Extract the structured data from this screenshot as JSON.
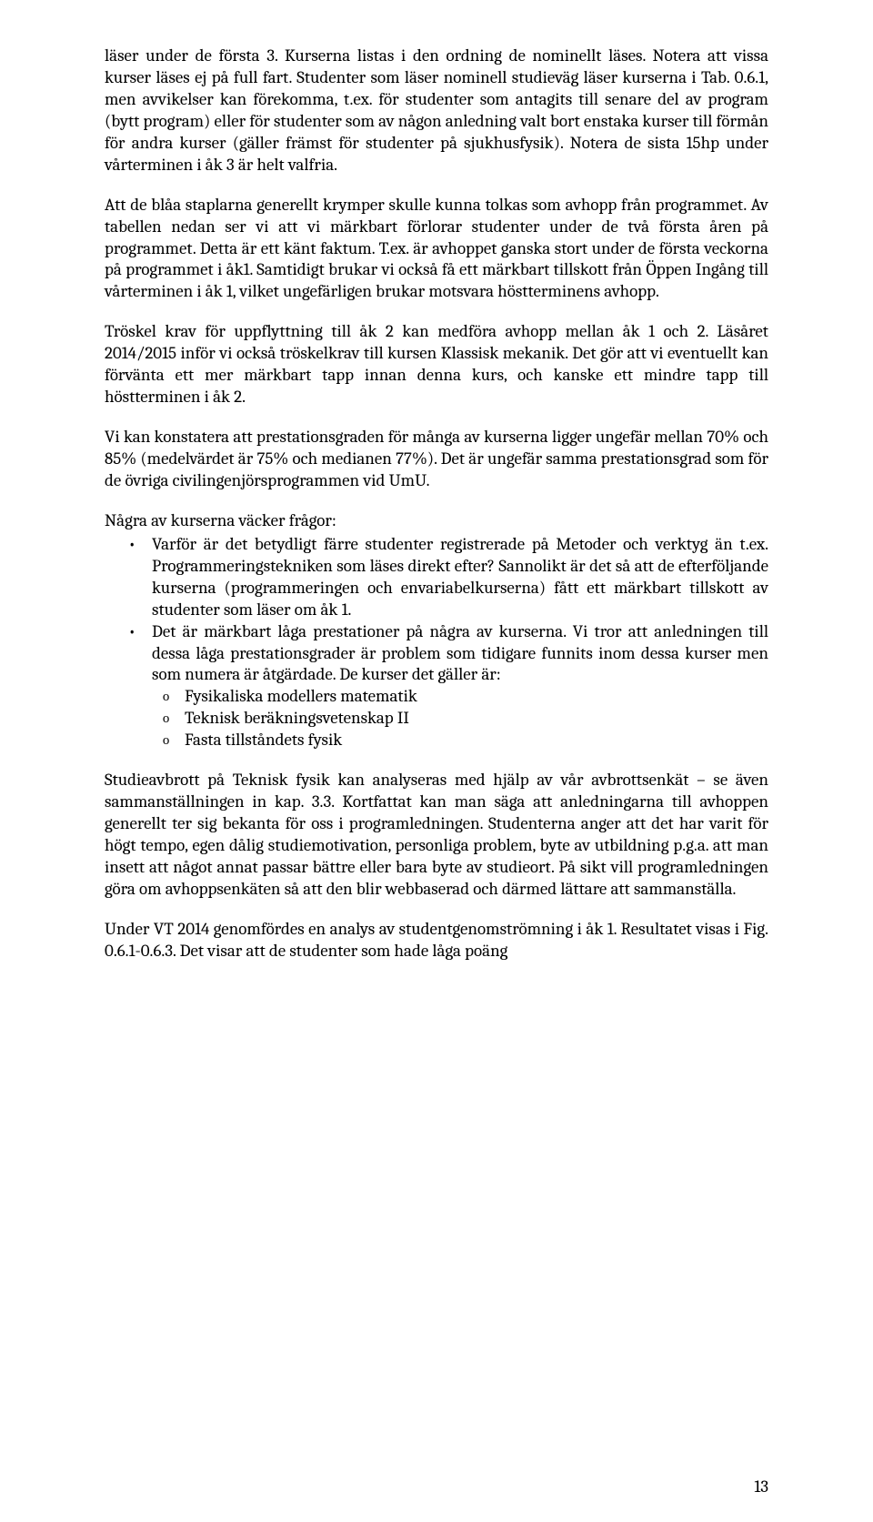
{
  "paragraphs": {
    "p1": "läser under de första 3. Kurserna listas i den ordning de nominellt läses. Notera att vissa kurser läses ej på full fart. Studenter som läser nominell studieväg läser kurserna i Tab. 0.6.1, men avvikelser kan förekomma, t.ex. för studenter som antagits till senare del av program (bytt program) eller för studenter som av någon anledning valt bort enstaka kurser till förmån för andra kurser (gäller främst för studenter på sjukhusfysik). Notera de sista 15hp under vårterminen i åk 3 är helt valfria.",
    "p2": "Att de blåa staplarna generellt krymper skulle kunna tolkas som avhopp från programmet. Av tabellen nedan ser vi att vi märkbart förlorar studenter under de två första åren på programmet. Detta är ett känt faktum. T.ex. är avhoppet ganska stort under de första veckorna på programmet i åk1. Samtidigt brukar vi också få ett märkbart tillskott från Öppen Ingång till vårterminen i åk 1, vilket ungefärligen brukar motsvara höstterminens avhopp.",
    "p3": "Tröskel krav för uppflyttning till åk 2 kan medföra avhopp mellan åk 1 och 2. Läsåret 2014/2015 inför vi också tröskelkrav till kursen Klassisk mekanik. Det gör att vi eventuellt kan förvänta ett mer märkbart tapp innan denna kurs, och kanske ett mindre tapp till höstterminen i åk 2.",
    "p4": "Vi kan konstatera att prestationsgraden för många av kurserna ligger ungefär mellan 70% och 85% (medelvärdet är 75% och medianen 77%). Det är ungefär samma prestationsgrad som för de övriga civilingenjörsprogrammen vid UmU.",
    "lead": "Några av kurserna väcker frågor:",
    "bullet1": "Varför är det betydligt färre studenter registrerade på Metoder och verktyg än t.ex. Programmeringstekniken som läses direkt efter? Sannolikt är det så att de efterföljande kurserna (programmeringen och envariabelkurserna) fått ett märkbart tillskott av studenter som läser om åk 1.",
    "bullet2": "Det är märkbart låga prestationer på några av kurserna. Vi tror att anledningen till dessa låga prestationsgrader är problem som tidigare funnits inom dessa kurser men som numera är åtgärdade. De kurser det gäller är:",
    "sub1": "Fysikaliska modellers matematik",
    "sub2": "Teknisk beräkningsvetenskap II",
    "sub3": "Fasta tillståndets fysik",
    "p5": "Studieavbrott på Teknisk fysik kan analyseras med hjälp av vår avbrottsenkät – se även sammanställningen in kap. 3.3. Kortfattat kan man säga att anledningarna till avhoppen generellt ter sig bekanta för oss i programledningen. Studenterna anger att det har varit för högt tempo, egen dålig studiemotivation, personliga problem, byte av utbildning p.g.a. att man insett att något annat passar bättre eller bara byte av studieort. På sikt vill programledningen göra om avhoppsenkäten så att den blir webbaserad och därmed lättare att sammanställa.",
    "p6": "Under VT 2014 genomfördes en analys av studentgenomströmning i åk 1. Resultatet visas i Fig. 0.6.1-0.6.3. Det visar att de studenter som hade låga poäng"
  },
  "pageNumber": "13"
}
